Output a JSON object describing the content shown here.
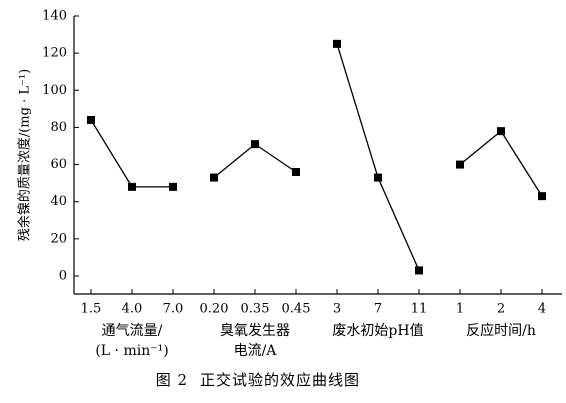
{
  "chart_data": {
    "type": "line",
    "ylabel": "残余镍的质量浓度/(mg · L⁻¹)",
    "ylim": [
      0,
      140
    ],
    "yticks": [
      0,
      20,
      40,
      60,
      80,
      100,
      120,
      140
    ],
    "grid": false,
    "panels": [
      {
        "label_lines": [
          "通气流量/",
          "(L · min⁻¹)"
        ],
        "categories": [
          "1.5",
          "4.0",
          "7.0"
        ],
        "values": [
          84,
          48,
          48
        ]
      },
      {
        "label_lines": [
          "臭氧发生器",
          "电流/A"
        ],
        "categories": [
          "0.20",
          "0.35",
          "0.45"
        ],
        "values": [
          53,
          71,
          56
        ]
      },
      {
        "label_lines": [
          "废水初始pH值"
        ],
        "categories": [
          "3",
          "7",
          "11"
        ],
        "values": [
          125,
          53,
          3
        ]
      },
      {
        "label_lines": [
          "反应时间/h"
        ],
        "categories": [
          "1",
          "2",
          "4"
        ],
        "values": [
          60,
          78,
          43
        ]
      }
    ]
  },
  "caption": {
    "number": "图 2",
    "text": "正交试验的效应曲线图"
  }
}
